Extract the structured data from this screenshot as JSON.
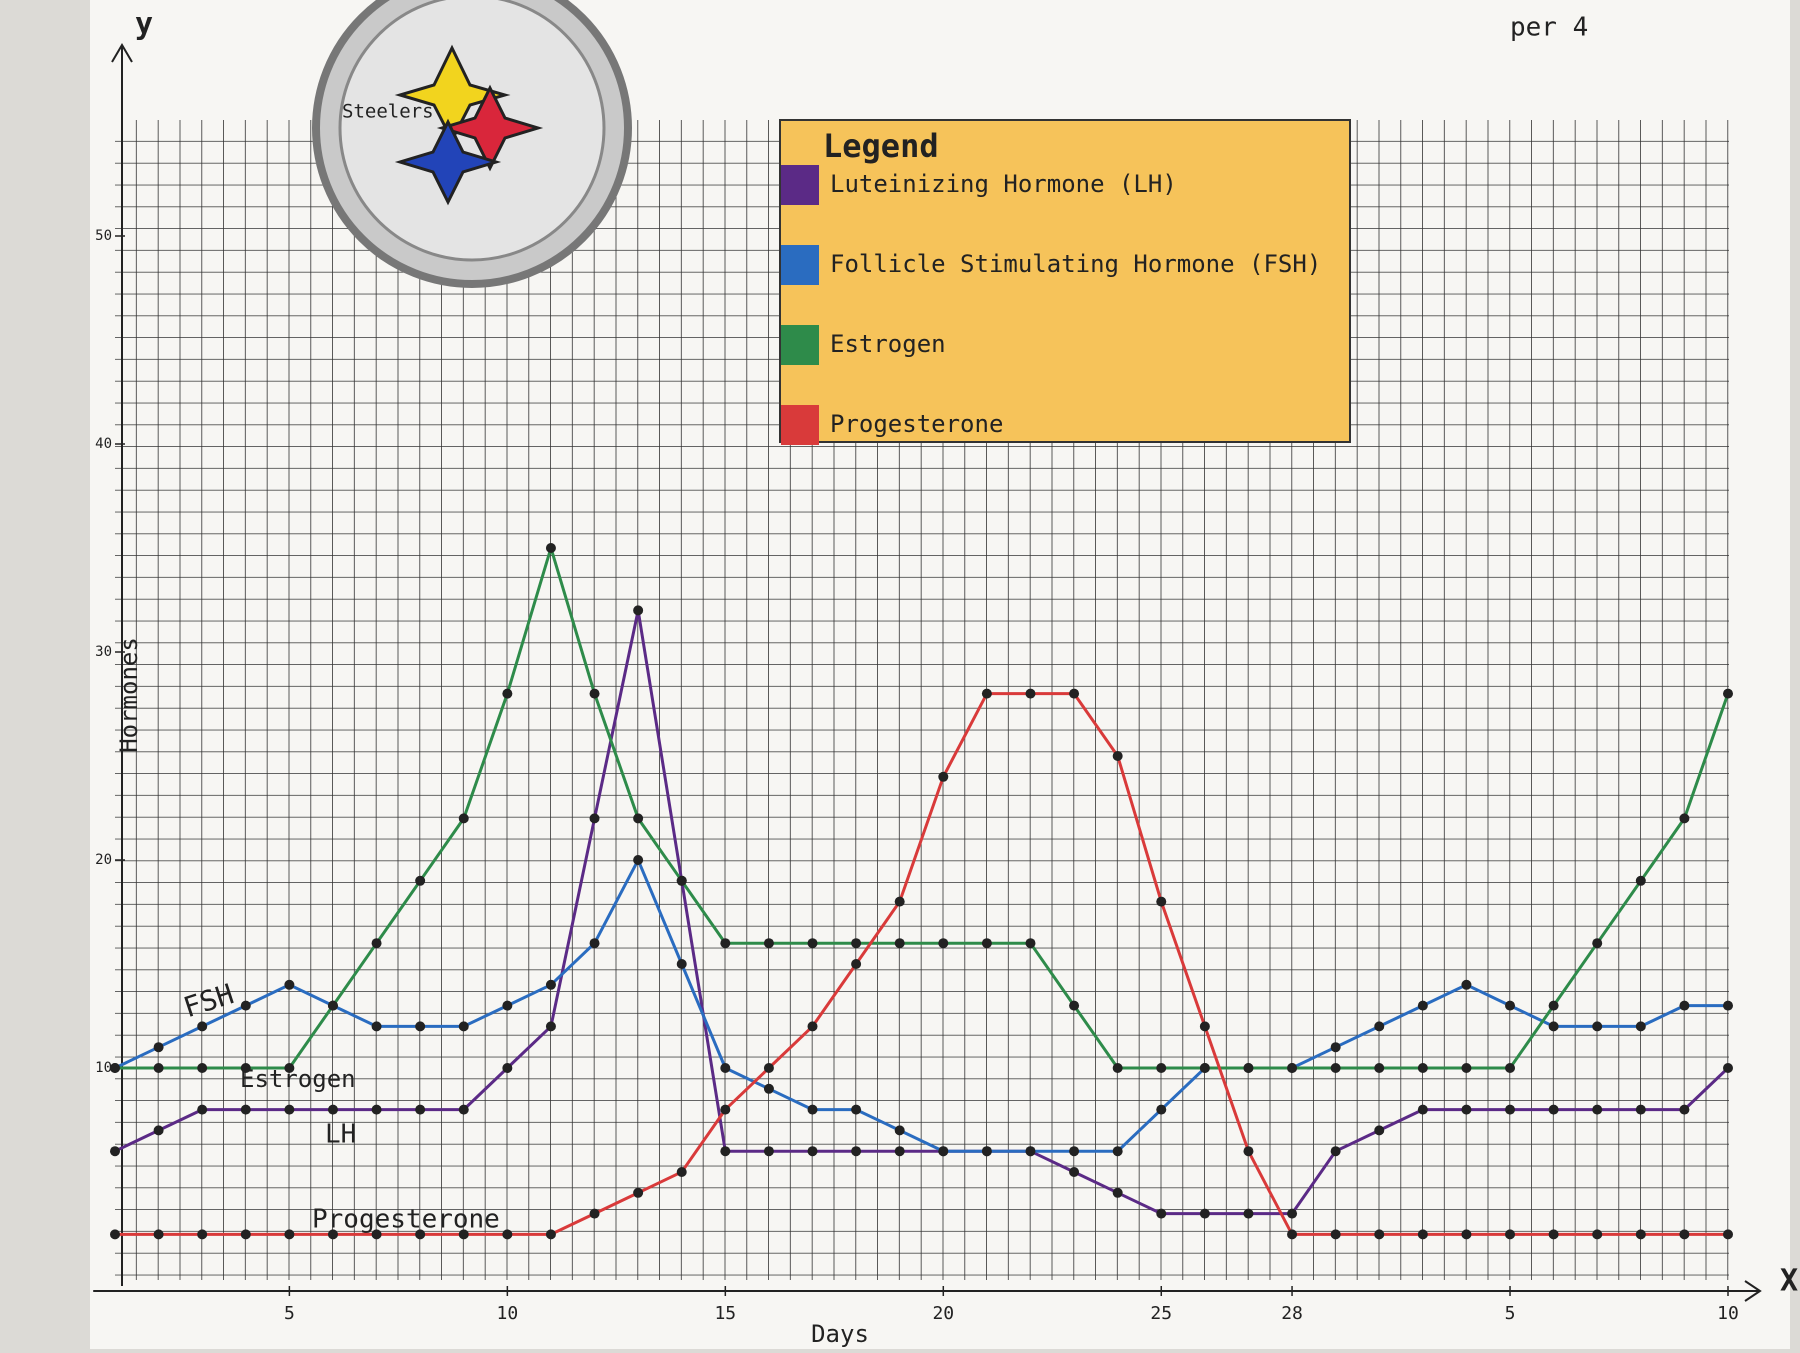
{
  "chart_data": {
    "type": "line",
    "x_label": "Days",
    "y_label": "Hormones",
    "y_axis_letter": "y",
    "x_axis_letter": "X",
    "x": [
      1,
      2,
      3,
      4,
      5,
      6,
      7,
      8,
      9,
      10,
      11,
      12,
      13,
      14,
      15,
      16,
      17,
      18,
      19,
      20,
      21,
      22,
      23,
      24,
      25,
      26,
      27,
      28,
      29,
      30,
      31,
      32,
      33,
      34,
      35,
      36,
      37,
      38
    ],
    "xlim": [
      0.5,
      38
    ],
    "ylim": [
      0,
      55
    ],
    "xticks": [
      5,
      10,
      15,
      20,
      25,
      28,
      {
        "value": 33,
        "label": "5"
      },
      {
        "value": 38,
        "label": "10"
      }
    ],
    "yticks": [
      10,
      20,
      30,
      40,
      50
    ],
    "legend_title": "Legend",
    "series": [
      {
        "name": "Luteinizing Hormone (LH)",
        "color": "#5b2a86",
        "values": [
          6,
          7,
          8,
          8,
          8,
          8,
          8,
          8,
          8,
          10,
          12,
          22,
          32,
          19,
          6,
          6,
          6,
          6,
          6,
          6,
          6,
          6,
          5,
          4,
          3,
          3,
          3,
          3,
          6,
          7,
          8,
          8,
          8,
          8,
          8,
          8,
          8,
          10
        ]
      },
      {
        "name": "Follicle Stimulating Hormone (FSH)",
        "color": "#2a6cc0",
        "values": [
          10,
          11,
          12,
          13,
          14,
          13,
          12,
          12,
          12,
          13,
          14,
          16,
          20,
          15,
          10,
          9,
          8,
          8,
          7,
          6,
          6,
          6,
          6,
          6,
          8,
          10,
          10,
          10,
          11,
          12,
          13,
          14,
          13,
          12,
          12,
          12,
          13,
          13
        ]
      },
      {
        "name": "Estrogen",
        "color": "#2e8b4a",
        "values": [
          10,
          10,
          10,
          10,
          10,
          13,
          16,
          19,
          22,
          28,
          35,
          28,
          22,
          19,
          16,
          16,
          16,
          16,
          16,
          16,
          16,
          16,
          13,
          10,
          10,
          10,
          10,
          10,
          10,
          10,
          10,
          10,
          10,
          13,
          16,
          19,
          22,
          28
        ]
      },
      {
        "name": "Progesterone",
        "color": "#d93a3a",
        "values": [
          2,
          2,
          2,
          2,
          2,
          2,
          2,
          2,
          2,
          2,
          2,
          3,
          4,
          5,
          8,
          10,
          12,
          15,
          18,
          24,
          28,
          28,
          28,
          25,
          18,
          12,
          6,
          2,
          2,
          2,
          2,
          2,
          2,
          2,
          2,
          2,
          2,
          2
        ]
      }
    ],
    "annotations": [
      "FSH",
      "Estrogen",
      "LH",
      "Progesterone",
      "Steelers",
      "per 4"
    ],
    "legend_position": "upper center"
  }
}
